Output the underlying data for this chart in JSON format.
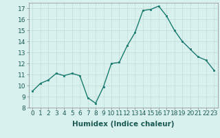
{
  "x": [
    0,
    1,
    2,
    3,
    4,
    5,
    6,
    7,
    8,
    9,
    10,
    11,
    12,
    13,
    14,
    15,
    16,
    17,
    18,
    19,
    20,
    21,
    22,
    23
  ],
  "y": [
    9.5,
    10.2,
    10.5,
    11.1,
    10.9,
    11.1,
    10.9,
    8.9,
    8.4,
    9.9,
    12.0,
    12.1,
    13.6,
    14.8,
    16.8,
    16.9,
    17.2,
    16.3,
    15.0,
    14.0,
    13.3,
    12.6,
    12.3,
    11.4
  ],
  "line_color": "#1a7a6e",
  "marker": "s",
  "marker_size": 2,
  "bg_color": "#d8f0ee",
  "grid_color": "#c0dbd8",
  "xlabel": "Humidex (Indice chaleur)",
  "xlim": [
    -0.5,
    23.5
  ],
  "ylim": [
    8,
    17.5
  ],
  "yticks": [
    8,
    9,
    10,
    11,
    12,
    13,
    14,
    15,
    16,
    17
  ],
  "xticks": [
    0,
    1,
    2,
    3,
    4,
    5,
    6,
    7,
    8,
    9,
    10,
    11,
    12,
    13,
    14,
    15,
    16,
    17,
    18,
    19,
    20,
    21,
    22,
    23
  ],
  "tick_label_fontsize": 6.5,
  "xlabel_fontsize": 7.5
}
